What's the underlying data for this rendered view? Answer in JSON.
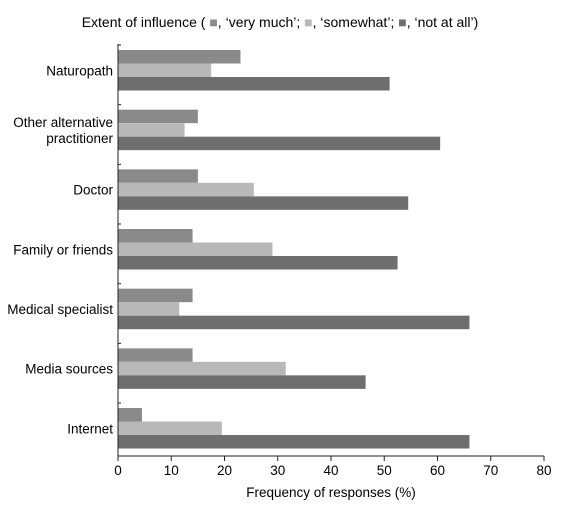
{
  "chart_data": {
    "type": "bar",
    "orientation": "horizontal",
    "title": "Extent of influence (",
    "legend_placement": "top",
    "legend_sep": ", ",
    "legend_separator_mid": "; ",
    "legend_end": ")",
    "xlabel": "Frequency of responses (%)",
    "ylabel": "",
    "xlim": [
      0,
      80
    ],
    "xticks": [
      0,
      10,
      20,
      30,
      40,
      50,
      60,
      70,
      80
    ],
    "grid": false,
    "categories": [
      "Naturopath",
      "Other alternative practitioner",
      "Doctor",
      "Family or friends",
      "Medical specialist",
      "Media sources",
      "Internet"
    ],
    "category_lines": [
      [
        "Naturopath"
      ],
      [
        "Other alternative",
        "practitioner"
      ],
      [
        "Doctor"
      ],
      [
        "Family or friends"
      ],
      [
        "Medical specialist"
      ],
      [
        "Media sources"
      ],
      [
        "Internet"
      ]
    ],
    "series": [
      {
        "name": "‘very much’",
        "color": "#8a8a8a",
        "values": [
          23,
          15,
          15,
          14,
          14,
          14,
          4.5
        ]
      },
      {
        "name": "‘somewhat’",
        "color": "#b8b8b8",
        "values": [
          17.5,
          12.5,
          25.5,
          29,
          11.5,
          31.5,
          19.5
        ]
      },
      {
        "name": "‘not at all’",
        "color": "#6e6e6e",
        "values": [
          51,
          60.5,
          54.5,
          52.5,
          66,
          46.5,
          66
        ]
      }
    ]
  }
}
